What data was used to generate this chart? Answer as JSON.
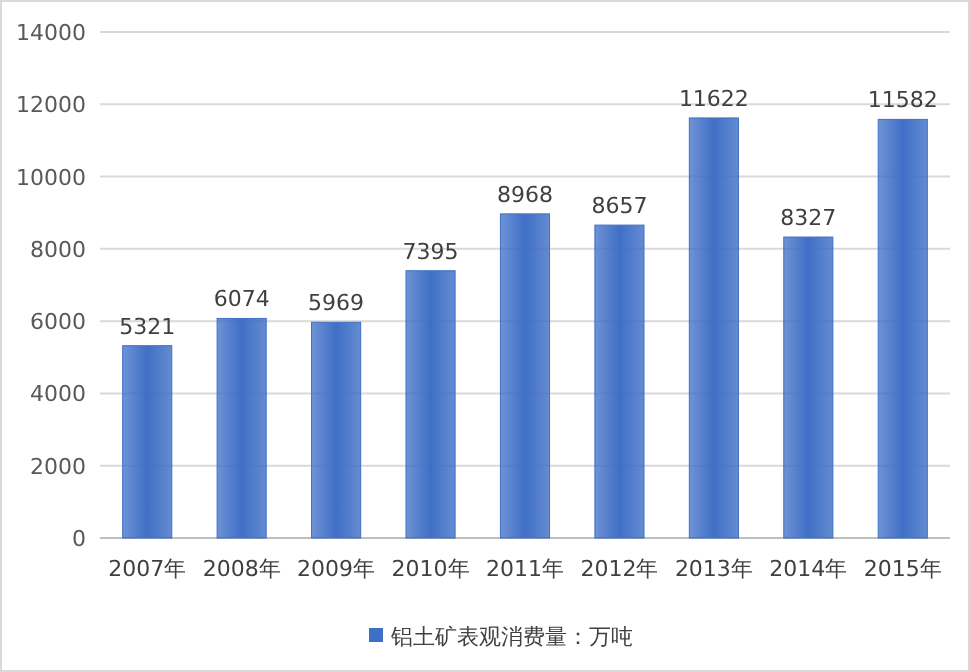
{
  "chart_data": {
    "type": "bar",
    "categories": [
      "2007年",
      "2008年",
      "2009年",
      "2010年",
      "2011年",
      "2012年",
      "2013年",
      "2014年",
      "2015年"
    ],
    "series": [
      {
        "name": "铝土矿表观消费量：万吨",
        "color": "#3f6fc6",
        "values": [
          5321,
          6074,
          5969,
          7395,
          8968,
          8657,
          11622,
          8327,
          11582
        ]
      }
    ],
    "ylim": [
      0,
      14000
    ],
    "yticks": [
      0,
      2000,
      4000,
      6000,
      8000,
      10000,
      12000,
      14000
    ],
    "grid": "y",
    "legend": "bottom",
    "data_labels": true
  }
}
